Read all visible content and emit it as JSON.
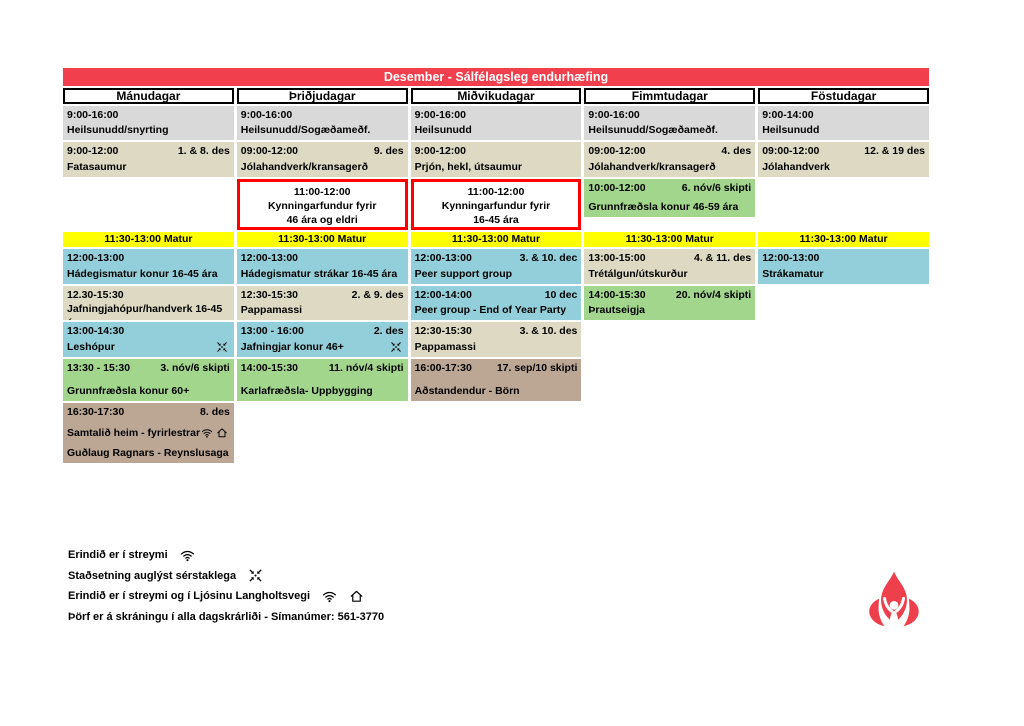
{
  "title": "Desember - Sálfélagsleg endurhæfing",
  "colors": {
    "header_red": "#f23f4d",
    "outline_red": "#ff0000",
    "gray": "#d9d9d9",
    "tan": "#ddd9c3",
    "teal": "#93cfda",
    "green": "#a2d68c",
    "brown": "#bca795",
    "yellow": "#ffff00",
    "logo_red": "#ee3f4c"
  },
  "days": [
    {
      "label": "Mánudagar",
      "events": [
        {
          "r": 3,
          "color": "gray",
          "time": "9:00-16:00",
          "title": "Heilsunudd/snyrting"
        },
        {
          "r": 4,
          "color": "tan",
          "time": "9:00-12:00",
          "date": "1. & 8. des",
          "title": "Fatasaumur"
        },
        {
          "r": 6,
          "color": "yellow",
          "center": true,
          "time": "11:30-13:00 Matur"
        },
        {
          "r": 7,
          "color": "teal",
          "time": "12:00-13:00",
          "title": "Hádegismatur konur 16-45 ára"
        },
        {
          "r": 8,
          "color": "tan",
          "time": "12.30-15:30",
          "title": "Jafningjahópur/handverk 16-45 ára"
        },
        {
          "r": 9,
          "color": "teal",
          "time": "13:00-14:30",
          "title": "Leshópur",
          "icons": [
            "location-arrows"
          ]
        },
        {
          "r": 10,
          "color": "green",
          "time": "13:30 - 15:30",
          "date": "3. nóv/6 skipti",
          "title": "Grunnfræðsla konur 60+"
        },
        {
          "r": 11,
          "color": "brown",
          "time": "16:30-17:30",
          "date": "8. des",
          "title": "Samtalið heim - fyrirlestrar",
          "icons": [
            "wifi",
            "home"
          ],
          "subtitle": "Guðlaug Ragnars - Reynslusaga"
        }
      ]
    },
    {
      "label": "Þriðjudagar",
      "events": [
        {
          "r": 3,
          "color": "gray",
          "time": "9:00-16:00",
          "title": "Heilsunudd/Sogæðameðf."
        },
        {
          "r": 4,
          "color": "tan",
          "time": "09:00-12:00",
          "date": "9. des",
          "title": "Jólahandverk/kransagerð"
        },
        {
          "r": 5,
          "color": "outlined",
          "center": true,
          "time": "11:00-12:00",
          "title": "Kynningarfundur fyrir",
          "subtitle": "46 ára og eldri"
        },
        {
          "r": 6,
          "color": "yellow",
          "center": true,
          "time": "11:30-13:00 Matur"
        },
        {
          "r": 7,
          "color": "teal",
          "time": "12:00-13:00",
          "title": "Hádegismatur strákar 16-45 ára"
        },
        {
          "r": 8,
          "color": "tan",
          "time": "12:30-15:30",
          "date": "2. & 9. des",
          "title": "Pappamassi"
        },
        {
          "r": 9,
          "color": "teal",
          "time": "13:00 - 16:00",
          "date": "2. des",
          "title": "Jafningjar konur 46+",
          "icons": [
            "location-arrows"
          ]
        },
        {
          "r": 10,
          "color": "green",
          "time": "14:00-15:30",
          "date": "11. nóv/4 skipti",
          "title": "Karlafræðsla- Uppbygging"
        }
      ]
    },
    {
      "label": "Miðvikudagar",
      "events": [
        {
          "r": 3,
          "color": "gray",
          "time": "9:00-16:00",
          "title": "Heilsunudd"
        },
        {
          "r": 4,
          "color": "tan",
          "time": "9:00-12:00",
          "title": "Prjón, hekl, útsaumur"
        },
        {
          "r": 5,
          "color": "outlined",
          "center": true,
          "time": "11:00-12:00",
          "title": "Kynningarfundur fyrir",
          "subtitle": "16-45 ára"
        },
        {
          "r": 6,
          "color": "yellow",
          "center": true,
          "time": "11:30-13:00 Matur"
        },
        {
          "r": 7,
          "color": "teal",
          "time": "12:00-13:00",
          "date": "3. & 10. dec",
          "title": "Peer support group"
        },
        {
          "r": 8,
          "color": "teal",
          "time": "12:00-14:00",
          "date": "10 dec",
          "title": "Peer group - End of Year Party"
        },
        {
          "r": 9,
          "color": "tan",
          "time": "12:30-15:30",
          "date": "3. & 10. des",
          "title": "Pappamassi"
        },
        {
          "r": 10,
          "color": "brown",
          "time": "16:00-17:30",
          "date": "17. sep/10 skipti",
          "title": "Aðstandendur - Börn"
        }
      ]
    },
    {
      "label": "Fimmtudagar",
      "events": [
        {
          "r": 3,
          "color": "gray",
          "time": "9:00-16:00",
          "title": "Heilsunudd/Sogæðameðf."
        },
        {
          "r": 4,
          "color": "tan",
          "time": "09:00-12:00",
          "date": "4. des",
          "title": "Jólahandverk/kransagerð"
        },
        {
          "r": 5,
          "color": "green",
          "top": true,
          "time": "10:00-12:00",
          "date": "6. nóv/6 skipti",
          "title": "Grunnfræðsla konur 46-59 ára"
        },
        {
          "r": 6,
          "color": "yellow",
          "center": true,
          "time": "11:30-13:00 Matur"
        },
        {
          "r": 7,
          "color": "tan",
          "time": "13:00-15:00",
          "date": "4. & 11. des",
          "title": "Trétálgun/útskurður"
        },
        {
          "r": 8,
          "color": "green",
          "time": "14:00-15:30",
          "date": "20. nóv/4 skipti",
          "title": "Þrautseigja"
        }
      ]
    },
    {
      "label": "Föstudagar",
      "events": [
        {
          "r": 3,
          "color": "gray",
          "time": "9:00-14:00",
          "title": "Heilsunudd"
        },
        {
          "r": 4,
          "color": "tan",
          "time": "09:00-12:00",
          "date": "12. & 19 des",
          "title": "Jólahandverk"
        },
        {
          "r": 6,
          "color": "yellow",
          "center": true,
          "time": "11:30-13:00 Matur"
        },
        {
          "r": 7,
          "color": "teal",
          "time": "12:00-13:00",
          "title": "Strákamatur"
        }
      ]
    }
  ],
  "legend": [
    {
      "text": "Erindið er í streymi",
      "icons": [
        "wifi"
      ]
    },
    {
      "text": "Staðsetning auglýst sérstaklega",
      "icons": [
        "location-arrows"
      ]
    },
    {
      "text": "Erindið er í streymi og í Ljósinu Langholtsvegi",
      "icons": [
        "wifi",
        "home"
      ]
    },
    {
      "text": "Þörf er á skráningu í alla dagskrárliði - Símanúmer: 561-3770",
      "icons": []
    }
  ]
}
